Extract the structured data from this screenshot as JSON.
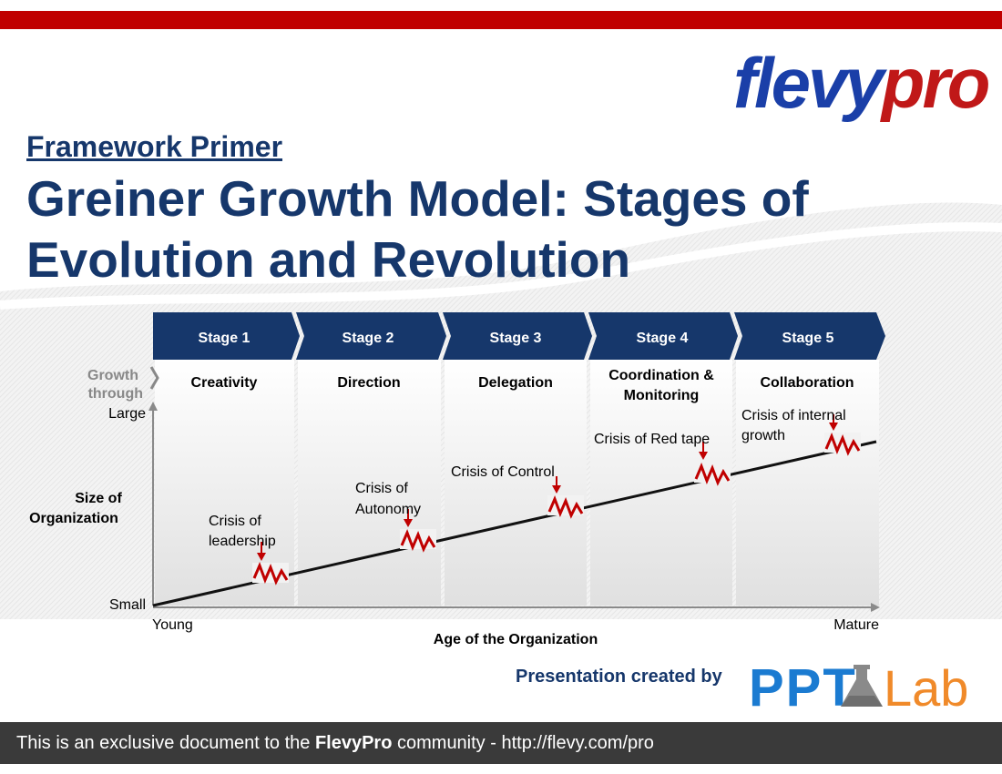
{
  "header": {
    "kicker": "Framework Primer",
    "title": "Greiner Growth Model: Stages of Evolution and Revolution"
  },
  "logo": {
    "part1": "flevy",
    "part2": "pro",
    "colors": {
      "part1": "#1a3fa8",
      "part2": "#c01818"
    }
  },
  "colors": {
    "accent_bar": "#c00000",
    "stage_fill": "#16376b",
    "crisis": "#c00000",
    "line": "#111111",
    "label_navy": "#16376b"
  },
  "diagram": {
    "stages": [
      "Stage 1",
      "Stage 2",
      "Stage 3",
      "Stage 4",
      "Stage 5"
    ],
    "growth_label_1": "Growth",
    "growth_label_2": "through",
    "growth": [
      {
        "line1": "Creativity",
        "line2": ""
      },
      {
        "line1": "Direction",
        "line2": ""
      },
      {
        "line1": "Delegation",
        "line2": ""
      },
      {
        "line1": "Coordination &",
        "line2": "Monitoring"
      },
      {
        "line1": "Collaboration",
        "line2": ""
      }
    ],
    "crises": [
      {
        "line1": "Crisis of",
        "line2": "leadership"
      },
      {
        "line1": "Crisis of",
        "line2": "Autonomy"
      },
      {
        "line1": "Crisis of Control",
        "line2": ""
      },
      {
        "line1": "Crisis of Red tape",
        "line2": ""
      },
      {
        "line1": "Crisis of internal",
        "line2": "growth"
      }
    ],
    "y_axis": {
      "title_1": "Size of",
      "title_2": "Organization",
      "top": "Large",
      "bottom": "Small"
    },
    "x_axis": {
      "title": "Age of the Organization",
      "left": "Young",
      "right": "Mature"
    }
  },
  "credit": {
    "text": "Presentation created by",
    "ppt": "PPT",
    "lab": "Lab",
    "colors": {
      "ppt": "#1b7bd1",
      "lab": "#f08a2a",
      "flask": "#888888"
    }
  },
  "footer": {
    "pre": "This is an exclusive document to the ",
    "bold": "FlevyPro",
    "post": " community - http://flevy.com/pro"
  }
}
